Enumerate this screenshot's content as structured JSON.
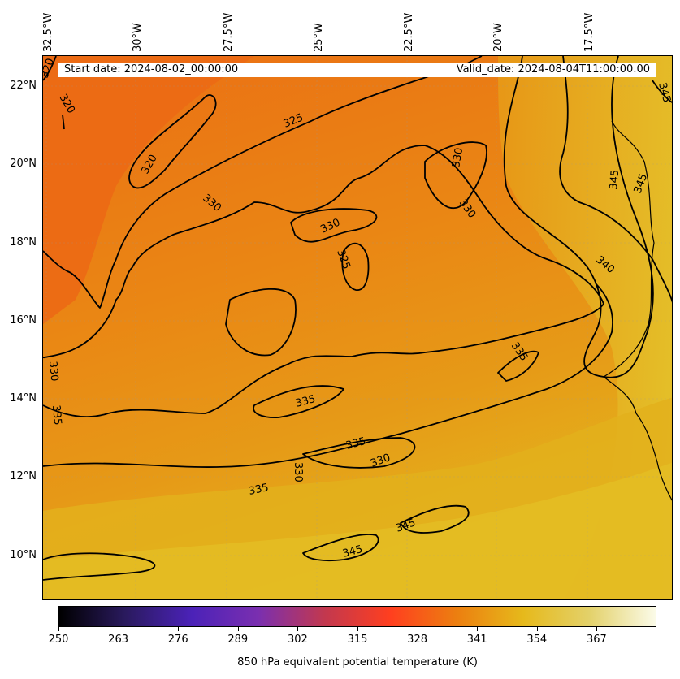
{
  "header": {
    "start_date": "Start date: 2024-08-02_00:00:00",
    "valid_date": "Valid_date: 2024-08-04T11:00:00.00"
  },
  "longitude_labels": [
    "32.5°W",
    "30°W",
    "27.5°W",
    "25°W",
    "22.5°W",
    "20°W",
    "17.5°W"
  ],
  "latitude_labels": [
    "22°N",
    "20°N",
    "18°N",
    "16°N",
    "14°N",
    "12°N",
    "10°N"
  ],
  "contour_labels": [
    "320",
    "320",
    "320",
    "325",
    "325",
    "330",
    "330",
    "330",
    "330",
    "330",
    "330",
    "330",
    "335",
    "335",
    "335",
    "335",
    "335",
    "340",
    "345",
    "345",
    "345",
    "345",
    "345"
  ],
  "colorbar": {
    "ticks": [
      "250",
      "263",
      "276",
      "289",
      "302",
      "315",
      "328",
      "341",
      "354",
      "367"
    ],
    "label": "850 hPa equivalent potential temperature (K)",
    "stops": [
      "#000000",
      "#2a1a5e",
      "#4b22b8",
      "#7a2fb0",
      "#c2384f",
      "#ff3f1f",
      "#ec7f10",
      "#e6b91b",
      "#e3d16a",
      "#fbfbe8"
    ]
  },
  "colors": {
    "cool_region": "#ec6a14",
    "mid_region": "#ea8714",
    "warm_region": "#e3ad1c",
    "hot_region": "#e4c225"
  }
}
